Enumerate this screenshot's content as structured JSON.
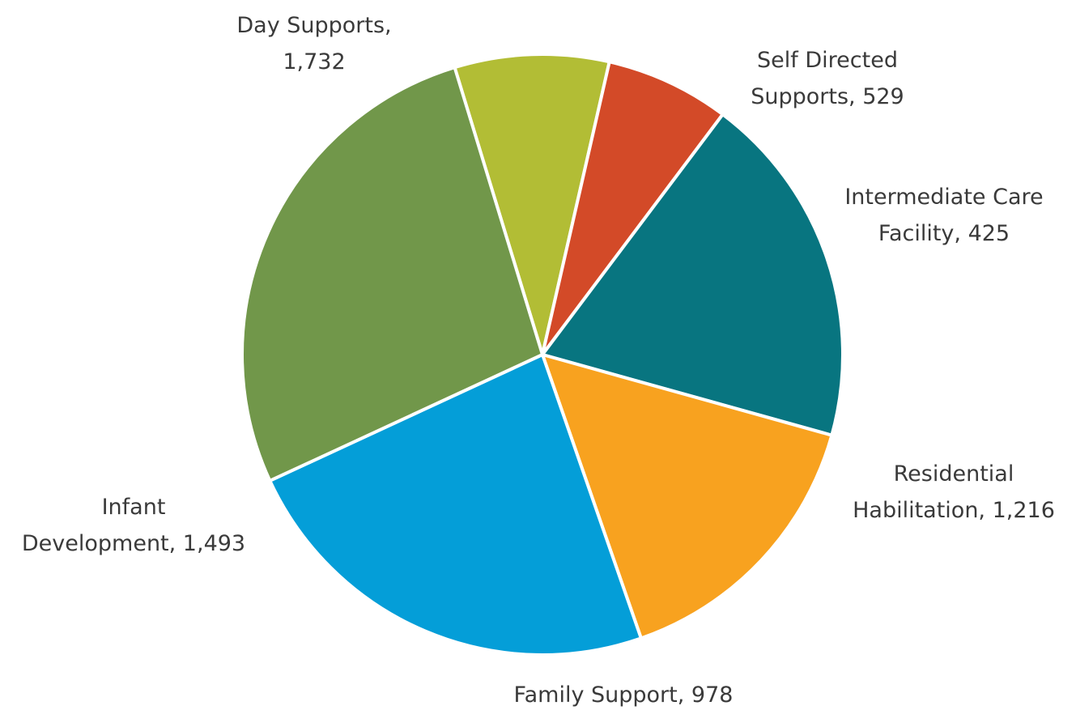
{
  "chart_data": {
    "type": "pie",
    "start_angle_deg": -17,
    "direction": "clockwise",
    "slices": [
      {
        "category": "Self Directed Supports",
        "value": 529,
        "label_lines": [
          "Self Directed",
          "Supports, 529"
        ],
        "color": "#b2bd35"
      },
      {
        "category": "Intermediate Care Facility",
        "value": 425,
        "label_lines": [
          "Intermediate Care",
          "Facility, 425"
        ],
        "color": "#d34a28"
      },
      {
        "category": "Residential Habilitation",
        "value": 1216,
        "label_lines": [
          "Residential",
          "Habilitation, 1,216"
        ],
        "color": "#087580"
      },
      {
        "category": "Family Support",
        "value": 978,
        "label_lines": [
          "Family Support, 978"
        ],
        "color": "#f8a21f"
      },
      {
        "category": "Infant Development",
        "value": 1493,
        "label_lines": [
          "Infant",
          "Development, 1,493"
        ],
        "color": "#049ed8"
      },
      {
        "category": "Day Supports",
        "value": 1732,
        "label_lines": [
          "Day Supports,",
          "1,732"
        ],
        "color": "#71974a"
      }
    ]
  }
}
